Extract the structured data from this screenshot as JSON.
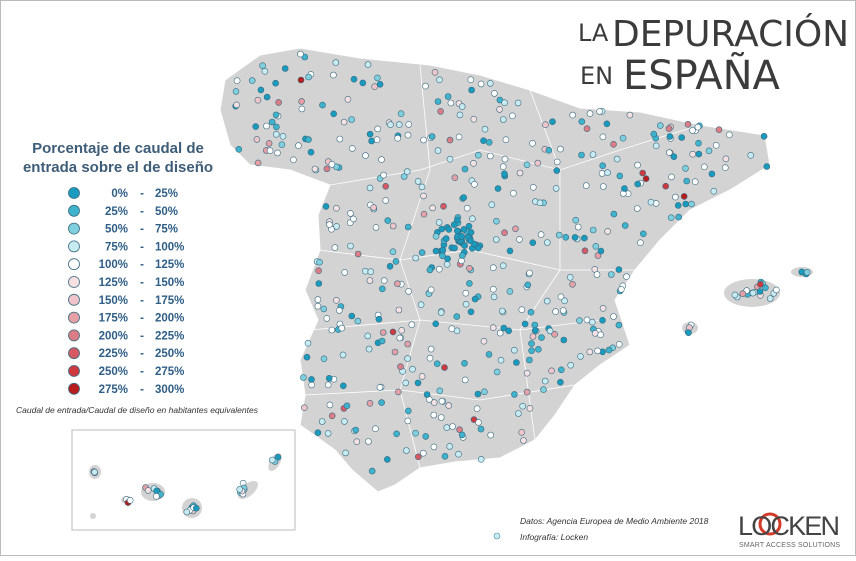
{
  "header": {
    "title_prefix": "LA",
    "title_line1": "DEPURACIÓN",
    "title_line2_prefix": "EN",
    "title_line2": "ESPAÑA"
  },
  "legend": {
    "title_line1": "Porcentaje de caudal de",
    "title_line2": "entrada sobre el de diseño",
    "items": [
      {
        "from": "0%",
        "separator": "-",
        "to": "25%",
        "color": "#1a9bbd"
      },
      {
        "from": "25%",
        "separator": "-",
        "to": "50%",
        "color": "#3fb3cc"
      },
      {
        "from": "50%",
        "separator": "-",
        "to": "75%",
        "color": "#7fcfde"
      },
      {
        "from": "75%",
        "separator": "-",
        "to": "100%",
        "color": "#c8ebf2"
      },
      {
        "from": "100%",
        "separator": "-",
        "to": "125%",
        "color": "#ffffff"
      },
      {
        "from": "125%",
        "separator": "-",
        "to": "150%",
        "color": "#f7e0e2"
      },
      {
        "from": "150%",
        "separator": "-",
        "to": "175%",
        "color": "#f0c4c8"
      },
      {
        "from": "175%",
        "separator": "-",
        "to": "200%",
        "color": "#e5a0a6"
      },
      {
        "from": "200%",
        "separator": "-",
        "to": "225%",
        "color": "#dc7d86"
      },
      {
        "from": "225%",
        "separator": "-",
        "to": "250%",
        "color": "#d55a63"
      },
      {
        "from": "250%",
        "separator": "-",
        "to": "275%",
        "color": "#cc3a3f"
      },
      {
        "from": "275%",
        "separator": "-",
        "to": "300%",
        "color": "#b81c1c"
      }
    ],
    "note": "Caudal de entrada/Caudal de diseño en habitantes equivalentes"
  },
  "credits": {
    "source": "Datos: Agencia Europea de Medio Ambiente 2018",
    "author": "Infografía: Locken"
  },
  "logo": {
    "name": "LOCKEN",
    "tagline": "SMART ACCESS SOLUTIONS"
  }
}
